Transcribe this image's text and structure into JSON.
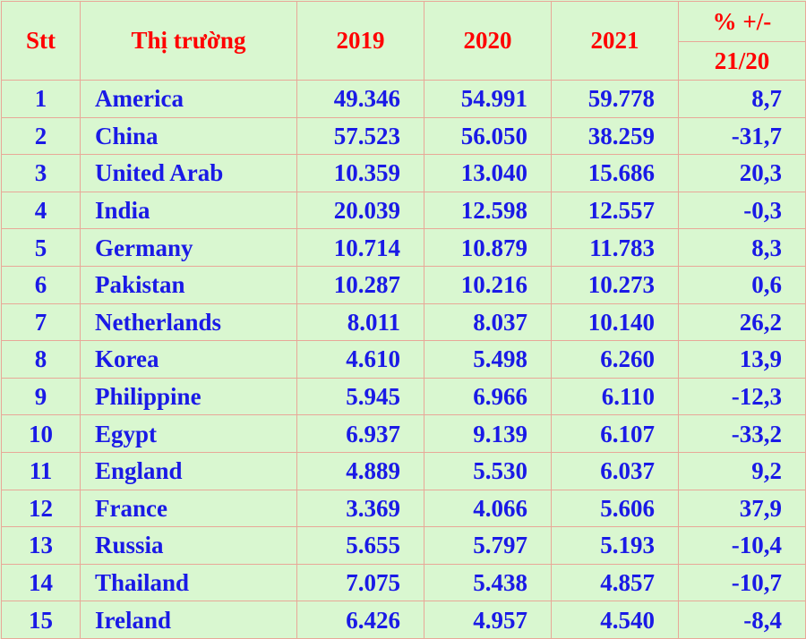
{
  "table": {
    "headers": {
      "stt": "Stt",
      "market": "Thị trường",
      "y2019": "2019",
      "y2020": "2020",
      "y2021": "2021",
      "pct_top": "% +/-",
      "pct_bottom": "21/20"
    },
    "rows": [
      {
        "stt": "1",
        "name": "America",
        "v2019": "49.346",
        "v2020": "54.991",
        "v2021": "59.778",
        "pct": "8,7"
      },
      {
        "stt": "2",
        "name": "China",
        "v2019": "57.523",
        "v2020": "56.050",
        "v2021": "38.259",
        "pct": "-31,7"
      },
      {
        "stt": "3",
        "name": "United Arab",
        "v2019": "10.359",
        "v2020": "13.040",
        "v2021": "15.686",
        "pct": "20,3"
      },
      {
        "stt": "4",
        "name": "India",
        "v2019": "20.039",
        "v2020": "12.598",
        "v2021": "12.557",
        "pct": "-0,3"
      },
      {
        "stt": "5",
        "name": "Germany",
        "v2019": "10.714",
        "v2020": "10.879",
        "v2021": "11.783",
        "pct": "8,3"
      },
      {
        "stt": "6",
        "name": "Pakistan",
        "v2019": "10.287",
        "v2020": "10.216",
        "v2021": "10.273",
        "pct": "0,6"
      },
      {
        "stt": "7",
        "name": "Netherlands",
        "v2019": "8.011",
        "v2020": "8.037",
        "v2021": "10.140",
        "pct": "26,2"
      },
      {
        "stt": "8",
        "name": "Korea",
        "v2019": "4.610",
        "v2020": "5.498",
        "v2021": "6.260",
        "pct": "13,9"
      },
      {
        "stt": "9",
        "name": "Philippine",
        "v2019": "5.945",
        "v2020": "6.966",
        "v2021": "6.110",
        "pct": "-12,3"
      },
      {
        "stt": "10",
        "name": "Egypt",
        "v2019": "6.937",
        "v2020": "9.139",
        "v2021": "6.107",
        "pct": "-33,2"
      },
      {
        "stt": "11",
        "name": "England",
        "v2019": "4.889",
        "v2020": "5.530",
        "v2021": "6.037",
        "pct": "9,2"
      },
      {
        "stt": "12",
        "name": "France",
        "v2019": "3.369",
        "v2020": "4.066",
        "v2021": "5.606",
        "pct": "37,9"
      },
      {
        "stt": "13",
        "name": "Russia",
        "v2019": "5.655",
        "v2020": "5.797",
        "v2021": "5.193",
        "pct": "-10,4"
      },
      {
        "stt": "14",
        "name": "Thailand",
        "v2019": "7.075",
        "v2020": "5.438",
        "v2021": "4.857",
        "pct": "-10,7"
      },
      {
        "stt": "15",
        "name": "Ireland",
        "v2019": "6.426",
        "v2020": "4.957",
        "v2021": "4.540",
        "pct": "-8,4"
      }
    ]
  }
}
